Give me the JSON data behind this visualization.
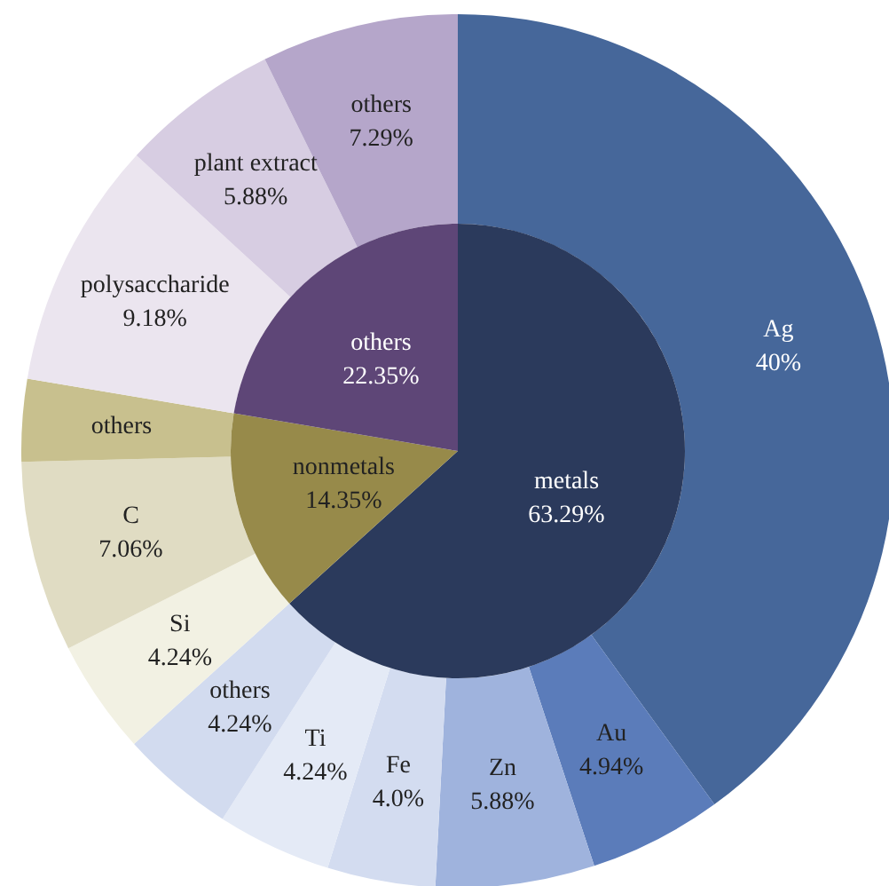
{
  "chart_data": [
    {
      "type": "pie",
      "categories": [
        "metals",
        "nonmetals",
        "others"
      ],
      "values": [
        63.29,
        14.35,
        22.35
      ],
      "colors": [
        "#2b3a5c",
        "#978a4a",
        "#5e4677"
      ],
      "value_labels": [
        "63.29%",
        "14.35%",
        "22.35%"
      ]
    },
    {
      "type": "donut",
      "categories": [
        "Ag",
        "Au",
        "Zn",
        "Fe",
        "Ti",
        "others",
        "Si",
        "C",
        "others",
        "polysaccharide",
        "plant extract",
        "others"
      ],
      "values": [
        40,
        4.94,
        5.88,
        4.0,
        4.24,
        4.24,
        4.24,
        7.06,
        3.05,
        9.18,
        5.88,
        7.29
      ],
      "colors": [
        "#46679a",
        "#5b7cba",
        "#9fb3dd",
        "#d3dcf0",
        "#e4eaf6",
        "#d2dbef",
        "#f2f1e3",
        "#e0dcc3",
        "#c8c08e",
        "#ebe5ef",
        "#d7cde2",
        "#b5a6ca"
      ],
      "value_labels": [
        "40%",
        "4.94%",
        "5.88%",
        "4.0%",
        "4.24%",
        "4.24%",
        "4.24%",
        "7.06%",
        null,
        "9.18%",
        "5.88%",
        "7.29%"
      ]
    }
  ]
}
